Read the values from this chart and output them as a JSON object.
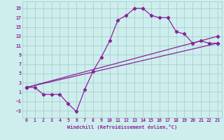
{
  "bg_color": "#ceeeed",
  "grid_color": "#aad4d3",
  "line_color": "#882299",
  "marker_color": "#882299",
  "x_label": "Windchill (Refroidissement éolien,°C)",
  "x_ticks": [
    0,
    1,
    2,
    3,
    4,
    5,
    6,
    7,
    8,
    9,
    10,
    11,
    12,
    13,
    14,
    15,
    16,
    17,
    18,
    19,
    20,
    21,
    22,
    23
  ],
  "y_ticks": [
    -3,
    -1,
    1,
    3,
    5,
    7,
    9,
    11,
    13,
    15,
    17,
    19
  ],
  "xlim": [
    -0.5,
    23.5
  ],
  "ylim": [
    -4.5,
    20.5
  ],
  "curve1_x": [
    0,
    1,
    2,
    3,
    4,
    5,
    6,
    7,
    8,
    9,
    10,
    11,
    12,
    13,
    14,
    15,
    16,
    17,
    18,
    19,
    20,
    21,
    22,
    23
  ],
  "curve1_y": [
    2.0,
    2.0,
    0.5,
    0.5,
    0.5,
    -1.5,
    -3.2,
    1.5,
    5.5,
    8.5,
    12.0,
    16.5,
    17.5,
    19.0,
    19.0,
    17.5,
    17.0,
    17.0,
    14.0,
    13.5,
    11.5,
    12.0,
    11.5,
    11.5
  ],
  "curve2_x": [
    0,
    23
  ],
  "curve2_y": [
    2.0,
    11.5
  ],
  "curve3_x": [
    0,
    23
  ],
  "curve3_y": [
    2.0,
    13.0
  ]
}
